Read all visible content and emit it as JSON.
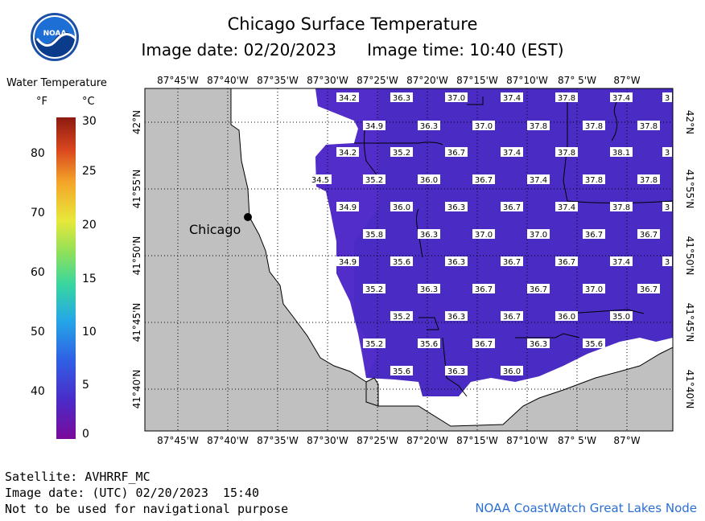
{
  "header": {
    "title": "Chicago Surface Temperature",
    "image_date_label": "Image date: 02/20/2023",
    "image_time_label": "Image time: 10:40 (EST)",
    "logo_text": "NOAA"
  },
  "legend": {
    "title": "Water Temperature",
    "unit_f": "°F",
    "unit_c": "°C",
    "f_ticks": [
      "80",
      "70",
      "60",
      "50",
      "40"
    ],
    "c_ticks": [
      "30",
      "25",
      "20",
      "15",
      "10",
      "5",
      "0"
    ],
    "colors": [
      "#7a0a9a",
      "#4b2bc8",
      "#2f62e6",
      "#24a8e6",
      "#38d6a0",
      "#8fe05a",
      "#e8e83a",
      "#f4a42a",
      "#d9461e",
      "#8c1a10"
    ]
  },
  "map": {
    "lon_labels": [
      "87°45'W",
      "87°40'W",
      "87°35'W",
      "87°30'W",
      "87°25'W",
      "87°20'W",
      "87°15'W",
      "87°10'W",
      "87° 5'W",
      "87°W"
    ],
    "lat_labels": [
      "42°N",
      "41°55'N",
      "41°50'N",
      "41°45'N",
      "41°40'N"
    ],
    "city_label": "Chicago",
    "water_color": "#4a2bc4",
    "land_color": "#c0c0c0",
    "temperature_labels": [
      "34.2",
      "36.3",
      "37.0",
      "37.4",
      "37.8",
      "37.4",
      "3",
      "34.9",
      "36.3",
      "37.0",
      "37.8",
      "37.8",
      "37.8",
      "34.2",
      "35.2",
      "36.7",
      "37.4",
      "37.8",
      "38.1",
      "3",
      "34.5",
      "35.2",
      "36.0",
      "36.7",
      "37.4",
      "37.8",
      "37.8",
      "34.9",
      "36.0",
      "36.3",
      "36.7",
      "37.4",
      "37.8",
      "3",
      "35.8",
      "36.3",
      "37.0",
      "37.0",
      "36.7",
      "36.7",
      "34.9",
      "35.6",
      "36.3",
      "36.7",
      "36.7",
      "37.4",
      "3",
      "35.2",
      "36.3",
      "36.7",
      "36.7",
      "37.0",
      "36.7",
      "35.2",
      "36.3",
      "36.7",
      "36.0",
      "35.0",
      "35.2",
      "35.6",
      "36.7",
      "36.3",
      "35.6",
      "35.6",
      "36.3",
      "36.0"
    ]
  },
  "footer": {
    "satellite": "Satellite: AVHRRF_MC",
    "utc_date": "Image date: (UTC) 02/20/2023  15:40",
    "disclaimer": "Not to be used for navigational purpose",
    "credit": "NOAA CoastWatch Great Lakes Node"
  }
}
